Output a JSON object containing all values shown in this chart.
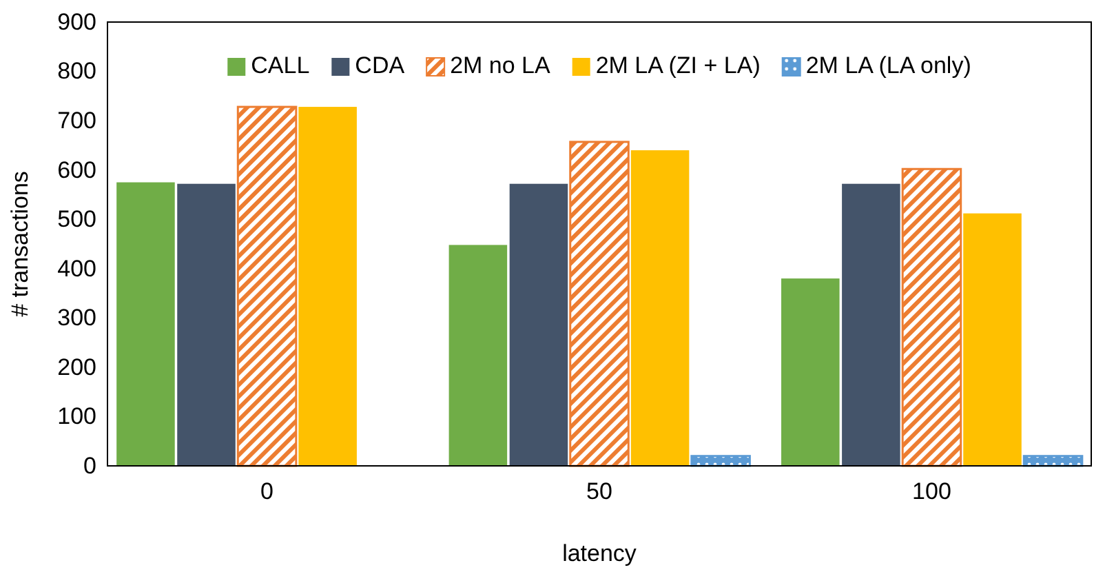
{
  "chart_data": {
    "type": "bar",
    "xlabel": "latency",
    "ylabel": "# transactions",
    "categories": [
      "0",
      "50",
      "100"
    ],
    "series": [
      {
        "name": "CALL",
        "color": "#70ad47",
        "values": [
          575,
          448,
          380
        ]
      },
      {
        "name": "CDA",
        "color": "#44546a",
        "values": [
          572,
          572,
          572
        ]
      },
      {
        "name": "2M no LA",
        "color": "#ed7d31",
        "values": [
          728,
          657,
          602
        ]
      },
      {
        "name": "2M LA (ZI + LA)",
        "color": "#ffc000",
        "values": [
          728,
          640,
          512
        ]
      },
      {
        "name": "2M LA (LA only)",
        "color": "#5b9bd5",
        "values": [
          0,
          20,
          20
        ]
      }
    ],
    "ylim": [
      0,
      900
    ],
    "yticks": [
      0,
      100,
      200,
      300,
      400,
      500,
      600,
      700,
      800,
      900
    ],
    "grid": false,
    "legend": "top"
  }
}
